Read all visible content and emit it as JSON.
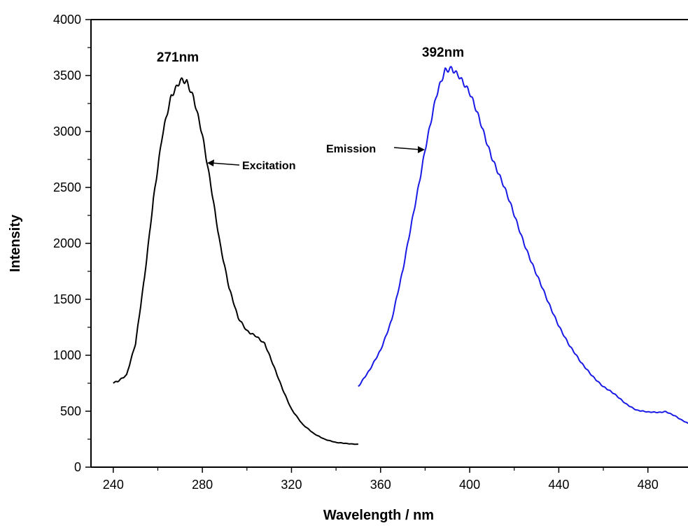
{
  "chart_data": {
    "type": "line",
    "xlabel": "Wavelength / nm",
    "ylabel": "Intensity",
    "xlim": [
      230,
      498
    ],
    "ylim": [
      0,
      4000
    ],
    "x_ticks": [
      240,
      280,
      320,
      360,
      400,
      440,
      480
    ],
    "y_ticks": [
      0,
      500,
      1000,
      1500,
      2000,
      2500,
      3000,
      3500,
      4000
    ],
    "grid": false,
    "series": [
      {
        "color": "#000000",
        "x": [
          240,
          242,
          246,
          250,
          254,
          258,
          262,
          266,
          270,
          271,
          273,
          276,
          280,
          284,
          288,
          292,
          296,
          300,
          304,
          308,
          312,
          316,
          320,
          325,
          330,
          335,
          340,
          345,
          350
        ],
        "y": [
          760,
          770,
          820,
          1100,
          1700,
          2400,
          2950,
          3300,
          3470,
          3480,
          3460,
          3300,
          2950,
          2500,
          2000,
          1600,
          1330,
          1220,
          1180,
          1100,
          900,
          700,
          520,
          380,
          300,
          250,
          220,
          210,
          205
        ]
      },
      {
        "color": "#1a1ae6",
        "x": [
          350,
          355,
          360,
          365,
          370,
          375,
          380,
          385,
          389,
          392,
          395,
          400,
          405,
          410,
          415,
          420,
          425,
          430,
          435,
          440,
          445,
          450,
          455,
          460,
          465,
          470,
          475,
          480,
          485,
          488,
          492,
          495,
          498
        ],
        "y": [
          720,
          860,
          1050,
          1320,
          1750,
          2300,
          2850,
          3300,
          3540,
          3580,
          3520,
          3330,
          3070,
          2780,
          2520,
          2250,
          1980,
          1720,
          1480,
          1270,
          1080,
          930,
          820,
          720,
          650,
          570,
          510,
          490,
          490,
          500,
          460,
          420,
          390
        ]
      }
    ],
    "annotations": [
      {
        "text": "271nm",
        "x": 271,
        "y": 3480
      },
      {
        "text": "392nm",
        "x": 392,
        "y": 3580
      },
      {
        "text": "Excitation",
        "x": 283,
        "y": 2700
      },
      {
        "text": "Emission",
        "x": 381,
        "y": 2800
      }
    ]
  }
}
